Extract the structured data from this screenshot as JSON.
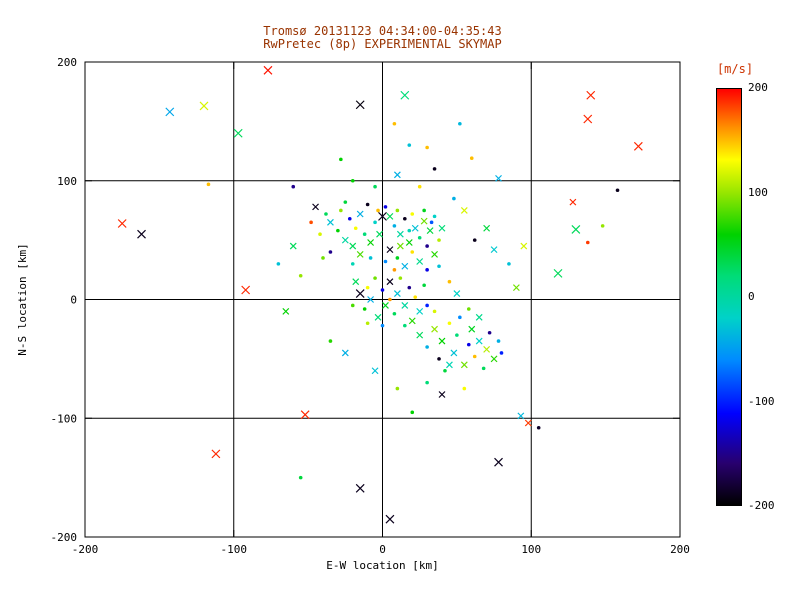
{
  "chart_data": {
    "type": "scatter",
    "title": "Tromsø 20131123 04:34:00-04:35:43",
    "subtitle": "RwPretec (8p) EXPERIMENTAL SKYMAP",
    "xlabel": "E-W location [km]",
    "ylabel": "N-S location [km]",
    "xlim": [
      -200,
      200
    ],
    "ylim": [
      -200,
      200
    ],
    "xticks": [
      -200,
      -100,
      0,
      100,
      200
    ],
    "yticks": [
      -200,
      -100,
      0,
      100,
      200
    ],
    "grid": true,
    "gridlines_at": [
      -100,
      0,
      100
    ],
    "axis_color": "#000000",
    "background": "#ffffff",
    "title_color": "#993300",
    "colorbar": {
      "label": "[m/s]",
      "label_color": "#cc3300",
      "min": -200,
      "max": 200,
      "ticks": [
        200,
        100,
        0,
        -100,
        -200
      ],
      "stops": [
        {
          "t": 0.0,
          "color": "#000000"
        },
        {
          "t": 0.1,
          "color": "#28006e"
        },
        {
          "t": 0.22,
          "color": "#0000ff"
        },
        {
          "t": 0.35,
          "color": "#008cff"
        },
        {
          "t": 0.45,
          "color": "#00d2c8"
        },
        {
          "t": 0.55,
          "color": "#00dc78"
        },
        {
          "t": 0.65,
          "color": "#00d200"
        },
        {
          "t": 0.75,
          "color": "#96e600"
        },
        {
          "t": 0.83,
          "color": "#ffff00"
        },
        {
          "t": 0.91,
          "color": "#ff8c00"
        },
        {
          "t": 1.0,
          "color": "#ff0000"
        }
      ]
    },
    "points_format": [
      "x_km",
      "y_km",
      "velocity_ms",
      "marker",
      "size"
    ],
    "points": [
      [
        -77,
        193,
        195,
        "x",
        4
      ],
      [
        -143,
        158,
        -45,
        "x",
        4
      ],
      [
        -120,
        163,
        120,
        "x",
        4
      ],
      [
        -97,
        140,
        30,
        "x",
        4
      ],
      [
        -117,
        97,
        150,
        "d",
        2
      ],
      [
        -15,
        164,
        -195,
        "x",
        4
      ],
      [
        15,
        172,
        20,
        "x",
        4
      ],
      [
        8,
        148,
        150,
        "d",
        2
      ],
      [
        30,
        128,
        150,
        "d",
        2
      ],
      [
        52,
        148,
        -35,
        "d",
        2
      ],
      [
        140,
        172,
        190,
        "x",
        4
      ],
      [
        138,
        152,
        190,
        "x",
        4
      ],
      [
        172,
        129,
        190,
        "x",
        4
      ],
      [
        158,
        92,
        -190,
        "d",
        2
      ],
      [
        128,
        82,
        190,
        "x",
        3
      ],
      [
        130,
        59,
        30,
        "x",
        4
      ],
      [
        138,
        48,
        185,
        "d",
        2
      ],
      [
        148,
        62,
        100,
        "d",
        2
      ],
      [
        -175,
        64,
        190,
        "x",
        4
      ],
      [
        -162,
        55,
        -190,
        "x",
        4
      ],
      [
        -92,
        8,
        190,
        "x",
        4
      ],
      [
        -52,
        -97,
        190,
        "x",
        4
      ],
      [
        -112,
        -130,
        190,
        "x",
        4
      ],
      [
        -15,
        -159,
        -190,
        "x",
        4
      ],
      [
        5,
        -185,
        -190,
        "x",
        4
      ],
      [
        78,
        -137,
        -190,
        "x",
        4
      ],
      [
        105,
        -108,
        -185,
        "d",
        2
      ],
      [
        98,
        -104,
        185,
        "x",
        3
      ],
      [
        93,
        -98,
        -35,
        "x",
        3
      ],
      [
        78,
        102,
        -40,
        "x",
        3
      ],
      [
        60,
        119,
        150,
        "d",
        2
      ],
      [
        -60,
        95,
        -150,
        "d",
        2
      ],
      [
        -28,
        118,
        60,
        "d",
        2
      ],
      [
        95,
        45,
        120,
        "x",
        3
      ],
      [
        75,
        42,
        -25,
        "x",
        3
      ],
      [
        118,
        22,
        30,
        "x",
        4
      ],
      [
        -55,
        -150,
        40,
        "d",
        2
      ],
      [
        35,
        110,
        -190,
        "d",
        2
      ],
      [
        18,
        130,
        -30,
        "d",
        2
      ],
      [
        -5,
        95,
        30,
        "d",
        2
      ],
      [
        10,
        105,
        -40,
        "x",
        3
      ],
      [
        25,
        95,
        140,
        "d",
        2
      ],
      [
        -20,
        100,
        60,
        "d",
        2
      ],
      [
        -45,
        78,
        -190,
        "x",
        3
      ],
      [
        -38,
        72,
        30,
        "d",
        2
      ],
      [
        -35,
        65,
        -30,
        "x",
        3
      ],
      [
        -30,
        58,
        60,
        "d",
        2
      ],
      [
        -28,
        75,
        100,
        "d",
        2
      ],
      [
        -25,
        50,
        0,
        "x",
        3
      ],
      [
        -22,
        68,
        -120,
        "d",
        2
      ],
      [
        -20,
        45,
        30,
        "x",
        3
      ],
      [
        -18,
        60,
        130,
        "d",
        2
      ],
      [
        -15,
        72,
        -40,
        "x",
        3
      ],
      [
        -12,
        55,
        20,
        "d",
        2
      ],
      [
        -10,
        80,
        -190,
        "d",
        2
      ],
      [
        -8,
        48,
        60,
        "x",
        3
      ],
      [
        -5,
        65,
        -20,
        "d",
        2
      ],
      [
        -3,
        75,
        150,
        "d",
        2
      ],
      [
        0,
        70,
        -190,
        "x",
        4
      ],
      [
        -42,
        55,
        120,
        "d",
        2
      ],
      [
        -35,
        40,
        -150,
        "d",
        2
      ],
      [
        -15,
        38,
        80,
        "x",
        3
      ],
      [
        -8,
        35,
        -30,
        "d",
        2
      ],
      [
        -25,
        82,
        40,
        "d",
        2
      ],
      [
        -48,
        65,
        180,
        "d",
        2
      ],
      [
        -2,
        55,
        30,
        "x",
        3
      ],
      [
        -20,
        30,
        -10,
        "d",
        2
      ],
      [
        -40,
        35,
        90,
        "d",
        2
      ],
      [
        2,
        78,
        -120,
        "d",
        2
      ],
      [
        5,
        70,
        30,
        "x",
        3
      ],
      [
        8,
        62,
        -40,
        "d",
        2
      ],
      [
        10,
        75,
        100,
        "d",
        2
      ],
      [
        12,
        55,
        0,
        "x",
        3
      ],
      [
        15,
        68,
        -190,
        "d",
        2
      ],
      [
        18,
        48,
        60,
        "x",
        3
      ],
      [
        20,
        72,
        130,
        "d",
        2
      ],
      [
        22,
        60,
        -30,
        "x",
        3
      ],
      [
        25,
        52,
        20,
        "d",
        2
      ],
      [
        28,
        66,
        90,
        "x",
        3
      ],
      [
        30,
        45,
        -150,
        "d",
        2
      ],
      [
        32,
        58,
        40,
        "x",
        3
      ],
      [
        35,
        70,
        -20,
        "d",
        2
      ],
      [
        38,
        50,
        110,
        "d",
        2
      ],
      [
        5,
        42,
        -190,
        "x",
        3
      ],
      [
        10,
        35,
        50,
        "d",
        2
      ],
      [
        15,
        28,
        -40,
        "x",
        3
      ],
      [
        20,
        40,
        140,
        "d",
        2
      ],
      [
        25,
        32,
        10,
        "x",
        3
      ],
      [
        30,
        25,
        -120,
        "d",
        2
      ],
      [
        35,
        38,
        70,
        "x",
        3
      ],
      [
        38,
        28,
        -30,
        "d",
        2
      ],
      [
        8,
        25,
        160,
        "d",
        2
      ],
      [
        2,
        32,
        -60,
        "d",
        2
      ],
      [
        12,
        45,
        90,
        "x",
        3
      ],
      [
        18,
        58,
        -10,
        "d",
        2
      ],
      [
        28,
        75,
        50,
        "d",
        2
      ],
      [
        33,
        65,
        -80,
        "d",
        2
      ],
      [
        40,
        60,
        20,
        "x",
        3
      ],
      [
        -18,
        15,
        30,
        "x",
        3
      ],
      [
        -15,
        5,
        -190,
        "x",
        4
      ],
      [
        -12,
        -8,
        60,
        "d",
        2
      ],
      [
        -10,
        10,
        130,
        "d",
        2
      ],
      [
        -8,
        0,
        -40,
        "x",
        3
      ],
      [
        -5,
        18,
        90,
        "d",
        2
      ],
      [
        -3,
        -15,
        20,
        "x",
        3
      ],
      [
        0,
        8,
        -120,
        "d",
        2
      ],
      [
        2,
        -5,
        50,
        "x",
        3
      ],
      [
        5,
        15,
        -190,
        "x",
        3
      ],
      [
        5,
        0,
        160,
        "d",
        2
      ],
      [
        8,
        -12,
        30,
        "d",
        2
      ],
      [
        10,
        5,
        -30,
        "x",
        3
      ],
      [
        12,
        18,
        100,
        "d",
        2
      ],
      [
        15,
        -5,
        0,
        "x",
        3
      ],
      [
        18,
        10,
        -150,
        "d",
        2
      ],
      [
        20,
        -18,
        70,
        "x",
        3
      ],
      [
        22,
        2,
        140,
        "d",
        2
      ],
      [
        25,
        -10,
        -20,
        "x",
        3
      ],
      [
        28,
        12,
        40,
        "d",
        2
      ],
      [
        -10,
        -20,
        110,
        "d",
        2
      ],
      [
        0,
        -22,
        -60,
        "d",
        2
      ],
      [
        15,
        -22,
        20,
        "d",
        2
      ],
      [
        30,
        -5,
        -100,
        "d",
        2
      ],
      [
        -20,
        -5,
        80,
        "d",
        2
      ],
      [
        25,
        -30,
        30,
        "x",
        3
      ],
      [
        30,
        -40,
        -40,
        "d",
        2
      ],
      [
        35,
        -25,
        100,
        "x",
        3
      ],
      [
        38,
        -50,
        -190,
        "d",
        2
      ],
      [
        40,
        -35,
        60,
        "x",
        3
      ],
      [
        45,
        -20,
        130,
        "d",
        2
      ],
      [
        48,
        -45,
        -30,
        "x",
        3
      ],
      [
        50,
        -30,
        20,
        "d",
        2
      ],
      [
        55,
        -55,
        90,
        "x",
        3
      ],
      [
        58,
        -38,
        -120,
        "d",
        2
      ],
      [
        60,
        -25,
        50,
        "x",
        3
      ],
      [
        62,
        -48,
        150,
        "d",
        2
      ],
      [
        65,
        -35,
        -20,
        "x",
        3
      ],
      [
        68,
        -58,
        30,
        "d",
        2
      ],
      [
        70,
        -42,
        110,
        "x",
        3
      ],
      [
        72,
        -28,
        -150,
        "d",
        2
      ],
      [
        75,
        -50,
        70,
        "x",
        3
      ],
      [
        78,
        -35,
        -40,
        "d",
        2
      ],
      [
        42,
        -60,
        40,
        "d",
        2
      ],
      [
        52,
        -15,
        -60,
        "d",
        2
      ],
      [
        35,
        -10,
        120,
        "d",
        2
      ],
      [
        65,
        -15,
        10,
        "x",
        3
      ],
      [
        80,
        -45,
        -100,
        "d",
        2
      ],
      [
        58,
        -8,
        90,
        "d",
        2
      ],
      [
        45,
        -55,
        -10,
        "x",
        3
      ],
      [
        -60,
        45,
        30,
        "x",
        3
      ],
      [
        -70,
        30,
        -30,
        "d",
        2
      ],
      [
        -55,
        20,
        100,
        "d",
        2
      ],
      [
        -65,
        -10,
        60,
        "x",
        3
      ],
      [
        48,
        85,
        -40,
        "d",
        2
      ],
      [
        55,
        75,
        120,
        "x",
        3
      ],
      [
        62,
        50,
        -190,
        "d",
        2
      ],
      [
        70,
        60,
        40,
        "x",
        3
      ],
      [
        85,
        30,
        -30,
        "d",
        2
      ],
      [
        90,
        10,
        90,
        "x",
        3
      ],
      [
        45,
        15,
        150,
        "d",
        2
      ],
      [
        50,
        5,
        -20,
        "x",
        3
      ],
      [
        -35,
        -35,
        70,
        "d",
        2
      ],
      [
        -25,
        -45,
        -40,
        "x",
        3
      ],
      [
        30,
        -70,
        20,
        "d",
        2
      ],
      [
        40,
        -80,
        -190,
        "x",
        3
      ],
      [
        55,
        -75,
        130,
        "d",
        2
      ],
      [
        20,
        -95,
        60,
        "d",
        2
      ],
      [
        -5,
        -60,
        -30,
        "x",
        3
      ],
      [
        10,
        -75,
        100,
        "d",
        2
      ]
    ]
  }
}
